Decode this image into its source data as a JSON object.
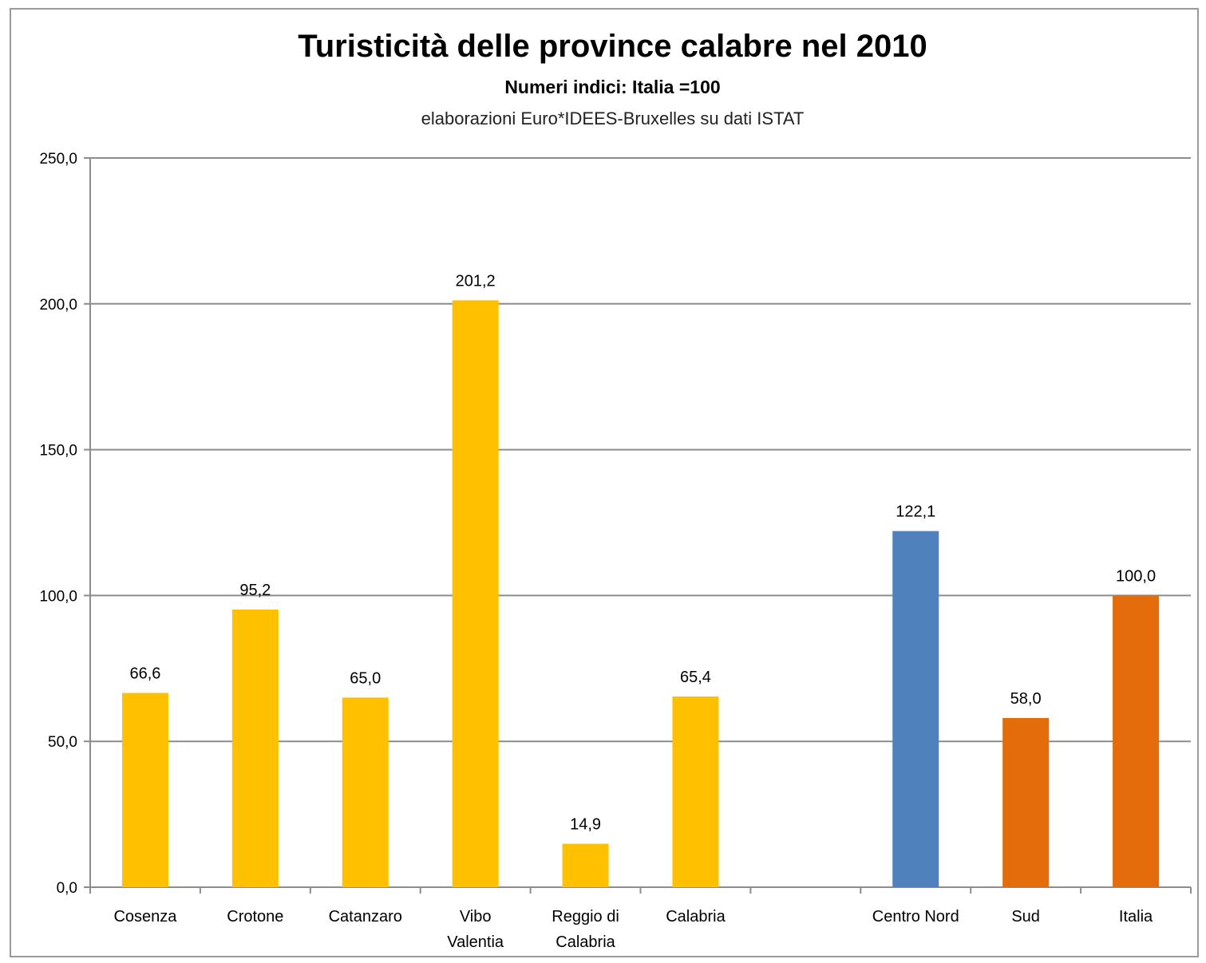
{
  "chart_data": {
    "type": "bar",
    "title": "Turisticità delle province calabre nel 2010",
    "subtitle": "Numeri indici: Italia =100",
    "source": "elaborazioni Euro*IDEES-Bruxelles su dati ISTAT",
    "xlabel": "",
    "ylabel": "",
    "ylim": [
      0,
      250
    ],
    "yticks": [
      0,
      50,
      100,
      150,
      200,
      250
    ],
    "ytick_labels": [
      "0,0",
      "50,0",
      "100,0",
      "150,0",
      "200,0",
      "250,0"
    ],
    "grid": true,
    "categories": [
      [
        "Cosenza"
      ],
      [
        "Crotone"
      ],
      [
        "Catanzaro"
      ],
      [
        "Vibo",
        "Valentia"
      ],
      [
        "Reggio di",
        "Calabria"
      ],
      [
        "Calabria"
      ],
      [
        ""
      ],
      [
        "Centro Nord"
      ],
      [
        "Sud"
      ],
      [
        "Italia"
      ]
    ],
    "values": [
      66.6,
      95.2,
      65.0,
      201.2,
      14.9,
      65.4,
      null,
      122.1,
      58.0,
      100.0
    ],
    "data_labels": [
      "66,6",
      "95,2",
      "65,0",
      "201,2",
      "14,9",
      "65,4",
      "",
      "122,1",
      "58,0",
      "100,0"
    ],
    "bar_colors": [
      "#FFC000",
      "#FFC000",
      "#FFC000",
      "#FFC000",
      "#FFC000",
      "#FFC000",
      "",
      "#4F81BD",
      "#E46C0A",
      "#E46C0A"
    ]
  }
}
